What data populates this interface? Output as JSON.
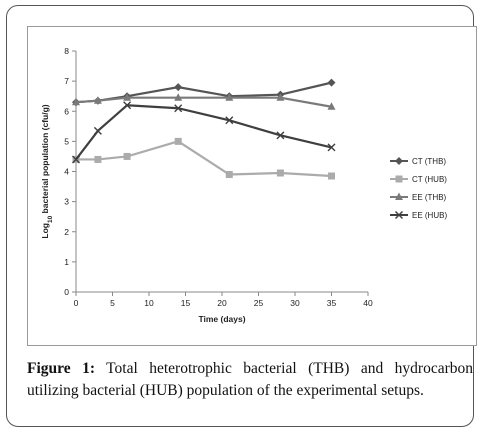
{
  "caption": {
    "label": "Figure 1:",
    "text": " Total heterotrophic bacterial (THB) and hydrocarbon utilizing bacterial (HUB) population of the experimental setups."
  },
  "chart_data": {
    "type": "line",
    "xlabel": "Time (days)",
    "ylabel_prefix": "Log",
    "ylabel_sub": "10",
    "ylabel_rest": " bacterial population (cfu/g)",
    "xlim": [
      0,
      40
    ],
    "ylim": [
      0,
      8
    ],
    "xticks": [
      0,
      5,
      10,
      15,
      20,
      25,
      30,
      35,
      40
    ],
    "yticks": [
      0,
      1,
      2,
      3,
      4,
      5,
      6,
      7,
      8
    ],
    "grid": false,
    "legend_position": "right",
    "series": [
      {
        "name": "CT (THB)",
        "color": "#555555",
        "marker": "diamond",
        "x": [
          0,
          3,
          7,
          14,
          21,
          28,
          35
        ],
        "y": [
          6.3,
          6.35,
          6.5,
          6.8,
          6.5,
          6.55,
          6.95
        ]
      },
      {
        "name": "CT (HUB)",
        "color": "#ababab",
        "marker": "square",
        "x": [
          0,
          3,
          7,
          14,
          21,
          28,
          35
        ],
        "y": [
          4.4,
          4.4,
          4.5,
          5.0,
          3.9,
          3.95,
          3.85
        ]
      },
      {
        "name": "EE (THB)",
        "color": "#7a7a7a",
        "marker": "triangle",
        "x": [
          0,
          3,
          7,
          14,
          21,
          28,
          35
        ],
        "y": [
          6.3,
          6.35,
          6.45,
          6.45,
          6.45,
          6.45,
          6.15
        ]
      },
      {
        "name": "EE (HUB)",
        "color": "#3f3f3f",
        "marker": "x",
        "x": [
          0,
          3,
          7,
          14,
          21,
          28,
          35
        ],
        "y": [
          4.4,
          5.35,
          6.2,
          6.1,
          5.7,
          5.2,
          4.8
        ]
      }
    ]
  }
}
